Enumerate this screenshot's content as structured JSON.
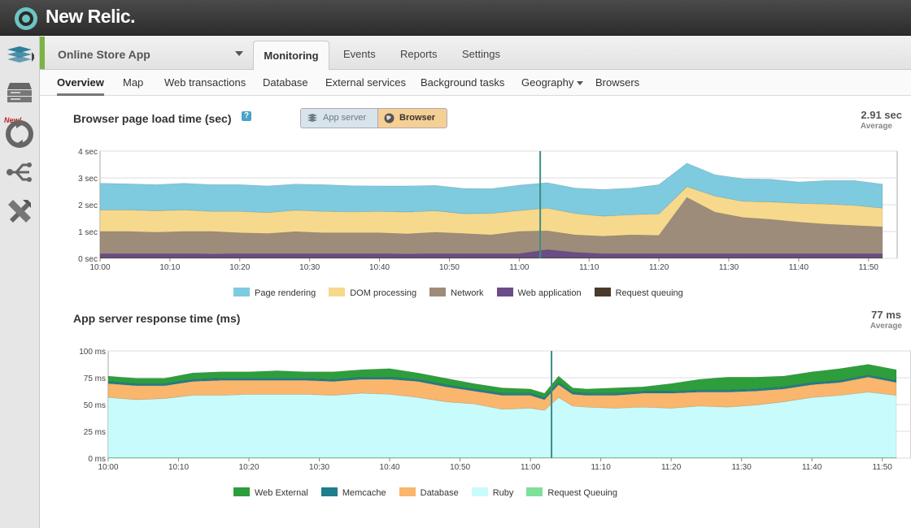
{
  "header": {
    "brand": "New Relic."
  },
  "rail": {
    "new_badge": "New!"
  },
  "app": {
    "name": "Online Store App"
  },
  "top_tabs": [
    "Monitoring",
    "Events",
    "Reports",
    "Settings"
  ],
  "sub_tabs": [
    "Overview",
    "Map",
    "Web transactions",
    "Database",
    "External services",
    "Background tasks",
    "Geography",
    "Browsers"
  ],
  "browser_panel": {
    "title": "Browser page load time (sec)",
    "help": "?",
    "toggle": {
      "app_server": "App server",
      "browser": "Browser"
    },
    "stat_value": "2.91 sec",
    "stat_label": "Average"
  },
  "app_panel": {
    "title": "App server response time (ms)",
    "stat_value": "77 ms",
    "stat_label": "Average"
  },
  "chart_data": [
    {
      "type": "area",
      "title": "Browser page load time (sec)",
      "stacked": true,
      "x": [
        "10:00",
        "10:04",
        "10:08",
        "10:12",
        "10:16",
        "10:20",
        "10:24",
        "10:28",
        "10:32",
        "10:36",
        "10:40",
        "10:44",
        "10:48",
        "10:52",
        "10:56",
        "11:00",
        "11:04",
        "11:08",
        "11:12",
        "11:16",
        "11:20",
        "11:24",
        "11:28",
        "11:32",
        "11:36",
        "11:40",
        "11:44",
        "11:48",
        "11:52"
      ],
      "xticks": [
        "10:00",
        "10:10",
        "10:20",
        "10:30",
        "10:40",
        "10:50",
        "11:00",
        "11:10",
        "11:20",
        "11:30",
        "11:40",
        "11:50"
      ],
      "yticks": [
        "0 sec",
        "1 sec",
        "2 sec",
        "3 sec",
        "4 sec"
      ],
      "ylim": [
        0,
        4
      ],
      "marker_x": "11:03",
      "series": [
        {
          "name": "Request queuing",
          "color": "#4a3c2c",
          "values": [
            0.02,
            0.02,
            0.02,
            0.02,
            0.02,
            0.02,
            0.02,
            0.02,
            0.02,
            0.02,
            0.02,
            0.02,
            0.02,
            0.02,
            0.02,
            0.02,
            0.02,
            0.02,
            0.02,
            0.02,
            0.02,
            0.02,
            0.02,
            0.02,
            0.02,
            0.02,
            0.02,
            0.02,
            0.02
          ]
        },
        {
          "name": "Web application",
          "color": "#6b4c86",
          "values": [
            0.15,
            0.15,
            0.15,
            0.15,
            0.14,
            0.15,
            0.15,
            0.15,
            0.15,
            0.15,
            0.15,
            0.14,
            0.15,
            0.15,
            0.15,
            0.15,
            0.3,
            0.2,
            0.15,
            0.15,
            0.15,
            0.15,
            0.15,
            0.15,
            0.15,
            0.15,
            0.15,
            0.15,
            0.15
          ]
        },
        {
          "name": "Network",
          "color": "#9e8c7a",
          "values": [
            0.83,
            0.83,
            0.8,
            0.83,
            0.84,
            0.78,
            0.75,
            0.82,
            0.78,
            0.78,
            0.78,
            0.75,
            0.8,
            0.75,
            0.7,
            0.83,
            0.7,
            0.65,
            0.65,
            0.7,
            0.68,
            2.1,
            1.55,
            1.35,
            1.28,
            1.18,
            1.1,
            1.05,
            1.0
          ]
        },
        {
          "name": "DOM processing",
          "color": "#f6d98c",
          "values": [
            0.8,
            0.8,
            0.8,
            0.8,
            0.75,
            0.8,
            0.78,
            0.8,
            0.8,
            0.78,
            0.8,
            0.81,
            0.8,
            0.74,
            0.8,
            0.78,
            0.85,
            0.8,
            0.75,
            0.75,
            0.8,
            0.4,
            0.6,
            0.6,
            0.65,
            0.7,
            0.75,
            0.75,
            0.7
          ]
        },
        {
          "name": "Page rendering",
          "color": "#7ecadf",
          "values": [
            1.0,
            0.98,
            0.98,
            1.0,
            1.0,
            1.0,
            1.0,
            0.98,
            1.0,
            0.98,
            0.95,
            0.98,
            0.95,
            0.95,
            0.93,
            0.95,
            0.95,
            0.95,
            1.0,
            1.0,
            1.1,
            0.88,
            0.8,
            0.85,
            0.85,
            0.8,
            0.88,
            0.93,
            0.9
          ]
        }
      ],
      "legend": [
        "Page rendering",
        "DOM processing",
        "Network",
        "Web application",
        "Request queuing"
      ]
    },
    {
      "type": "area",
      "title": "App server response time (ms)",
      "stacked": true,
      "x": [
        "10:00",
        "10:04",
        "10:08",
        "10:12",
        "10:16",
        "10:20",
        "10:24",
        "10:28",
        "10:32",
        "10:36",
        "10:40",
        "10:44",
        "10:48",
        "10:52",
        "10:56",
        "11:00",
        "11:02",
        "11:04",
        "11:06",
        "11:08",
        "11:12",
        "11:16",
        "11:20",
        "11:24",
        "11:28",
        "11:32",
        "11:36",
        "11:40",
        "11:44",
        "11:48",
        "11:52"
      ],
      "xticks": [
        "10:00",
        "10:10",
        "10:20",
        "10:30",
        "10:40",
        "10:50",
        "11:00",
        "11:10",
        "11:20",
        "11:30",
        "11:40",
        "11:50"
      ],
      "yticks": [
        "0 ms",
        "25 ms",
        "50 ms",
        "75 ms",
        "100 ms"
      ],
      "ylim": [
        0,
        100
      ],
      "marker_x": "11:03",
      "series": [
        {
          "name": "Request Queuing",
          "color": "#7ee09a",
          "values": [
            0.5,
            0.5,
            0.5,
            0.5,
            0.5,
            0.5,
            0.5,
            0.5,
            0.5,
            0.5,
            0.5,
            0.5,
            0.5,
            0.5,
            0.5,
            0.5,
            0.5,
            0.5,
            0.5,
            0.5,
            0.5,
            0.5,
            0.5,
            0.5,
            0.5,
            0.5,
            0.5,
            0.5,
            0.5,
            0.5,
            0.5
          ]
        },
        {
          "name": "Ruby",
          "color": "#c8fbfb",
          "values": [
            56,
            54,
            55,
            58,
            58,
            59,
            59,
            59,
            58,
            60,
            59,
            56,
            52,
            50,
            45,
            46,
            44,
            56,
            48,
            47,
            46,
            47,
            46,
            48,
            47,
            49,
            52,
            56,
            58,
            61,
            58
          ]
        },
        {
          "name": "Database",
          "color": "#f9b66c",
          "values": [
            13,
            13,
            12,
            13,
            14,
            13,
            13,
            13,
            13,
            13,
            14,
            15,
            14,
            12,
            13,
            12,
            10,
            12,
            11,
            11,
            12,
            13,
            14,
            13,
            14,
            13,
            12,
            12,
            12,
            14,
            12
          ]
        },
        {
          "name": "Memcache",
          "color": "#1f7d8c",
          "values": [
            2,
            2,
            2,
            2,
            2,
            2,
            2,
            2,
            2,
            2,
            2,
            2,
            2,
            2,
            2,
            2,
            2,
            2,
            2,
            2,
            2,
            2,
            2,
            2,
            2,
            2,
            2,
            2,
            2,
            2,
            2
          ]
        },
        {
          "name": "Web External",
          "color": "#2e9e3c",
          "values": [
            5,
            5,
            5,
            6,
            6,
            6,
            7,
            6,
            7,
            7,
            8,
            6,
            6,
            5,
            5,
            4,
            4,
            6,
            4,
            4,
            5,
            4,
            7,
            10,
            12,
            11,
            10,
            10,
            11,
            10,
            10
          ]
        }
      ],
      "legend": [
        "Web External",
        "Memcache",
        "Database",
        "Ruby",
        "Request Queuing"
      ]
    }
  ]
}
